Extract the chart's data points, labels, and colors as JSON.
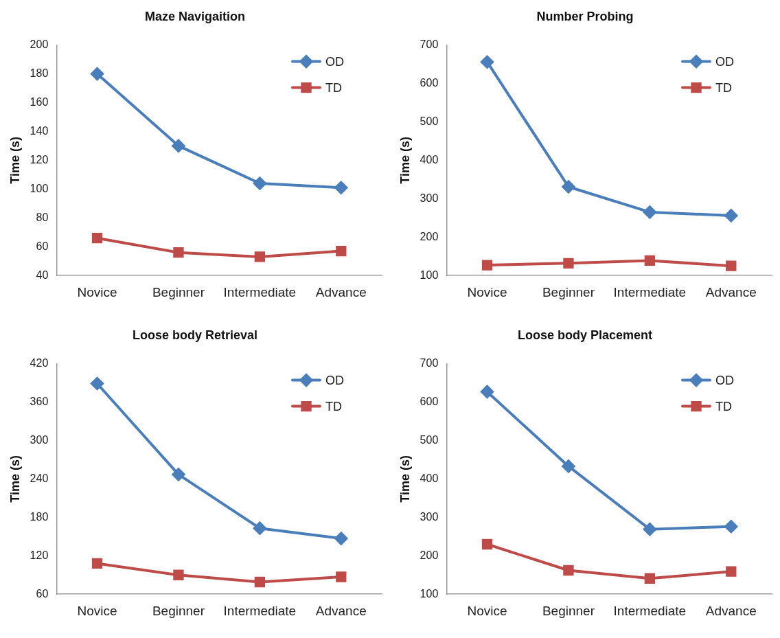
{
  "chart_data": [
    {
      "type": "line",
      "title": "Maze Navigaition",
      "ylabel": "Time (s)",
      "categories": [
        "Novice",
        "Beginner",
        "Intermediate",
        "Advance"
      ],
      "series": [
        {
          "name": "OD",
          "color": "#4a7ebb",
          "marker": "diamond",
          "values": [
            180,
            130,
            104,
            101
          ]
        },
        {
          "name": "TD",
          "color": "#be4b48",
          "marker": "square",
          "values": [
            66,
            56,
            53,
            57
          ]
        }
      ],
      "ylim": [
        40,
        200
      ],
      "yticks": [
        40,
        60,
        80,
        100,
        120,
        140,
        160,
        180,
        200
      ],
      "grid": false,
      "legend": "top right",
      "line_style": "solid"
    },
    {
      "type": "line",
      "title": "Number Probing",
      "ylabel": "Time (s)",
      "categories": [
        "Novice",
        "Beginner",
        "Intermediate",
        "Advance"
      ],
      "series": [
        {
          "name": "OD",
          "color": "#4a7ebb",
          "marker": "diamond",
          "values": [
            656,
            331,
            265,
            256
          ]
        },
        {
          "name": "TD",
          "color": "#be4b48",
          "marker": "square",
          "values": [
            127,
            132,
            139,
            125
          ]
        }
      ],
      "ylim": [
        100,
        700
      ],
      "yticks": [
        100,
        200,
        300,
        400,
        500,
        600,
        700
      ],
      "grid": false,
      "legend": "top right",
      "line_style": "solid"
    },
    {
      "type": "line",
      "title": "Loose body Retrieval",
      "ylabel": "Time (s)",
      "categories": [
        "Novice",
        "Beginner",
        "Intermediate",
        "Advance"
      ],
      "series": [
        {
          "name": "OD",
          "color": "#4a7ebb",
          "marker": "diamond",
          "values": [
            389,
            247,
            163,
            147
          ]
        },
        {
          "name": "TD",
          "color": "#be4b48",
          "marker": "square",
          "values": [
            108,
            90,
            79,
            87
          ]
        }
      ],
      "ylim": [
        60,
        420
      ],
      "yticks": [
        60,
        120,
        180,
        240,
        300,
        360,
        420
      ],
      "grid": false,
      "legend": "top right",
      "line_style": "solid"
    },
    {
      "type": "line",
      "title": "Loose body Placement",
      "ylabel": "Time (s)",
      "categories": [
        "Novice",
        "Beginner",
        "Intermediate",
        "Advance"
      ],
      "series": [
        {
          "name": "OD",
          "color": "#4a7ebb",
          "marker": "diamond",
          "values": [
            627,
            433,
            269,
            276
          ]
        },
        {
          "name": "TD",
          "color": "#be4b48",
          "marker": "square",
          "values": [
            230,
            162,
            141,
            159
          ]
        }
      ],
      "ylim": [
        100,
        700
      ],
      "yticks": [
        100,
        200,
        300,
        400,
        500,
        600,
        700
      ],
      "grid": false,
      "legend": "top right",
      "line_style": "solid"
    }
  ]
}
